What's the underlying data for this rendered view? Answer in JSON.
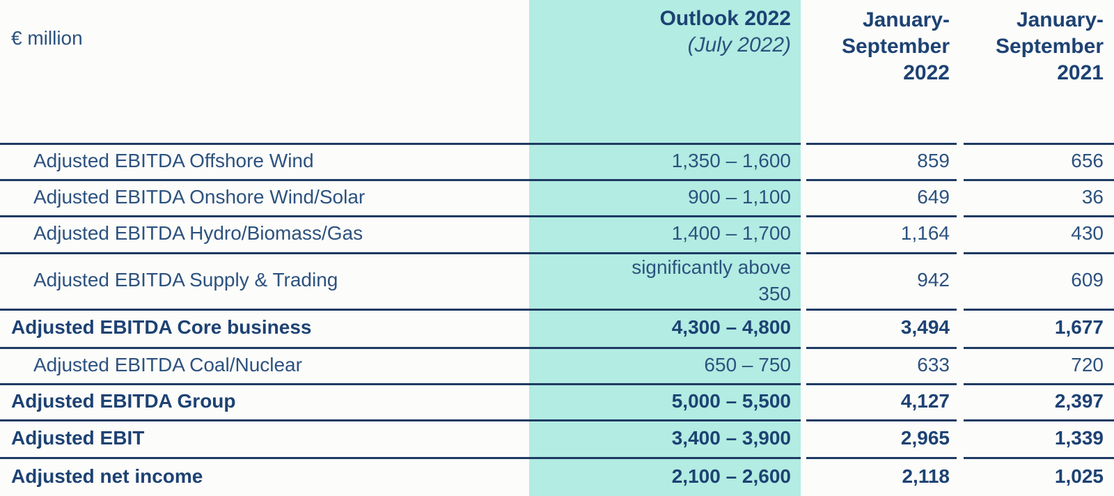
{
  "colors": {
    "accent_teal": "#b2ece2",
    "navy_text": "#2c527f",
    "navy_bold": "#1d4273",
    "rule": "#1e3a63",
    "background": "#fcfcfa"
  },
  "table": {
    "unit_label": "€ million",
    "header": {
      "outlook": {
        "title": "Outlook 2022",
        "subtitle": "(July 2022)"
      },
      "period_2022": {
        "lines": [
          "January-",
          "September",
          "2022"
        ]
      },
      "period_2021": {
        "lines": [
          "January-",
          "September",
          "2021"
        ]
      }
    },
    "rows": [
      {
        "label": "Adjusted EBITDA Offshore Wind",
        "outlook": "1,350 – 1,600",
        "jan_sep_2022": "859",
        "jan_sep_2021": "656",
        "emphasis": false
      },
      {
        "label": "Adjusted EBITDA Onshore Wind/Solar",
        "outlook": "900 – 1,100",
        "jan_sep_2022": "649",
        "jan_sep_2021": "36",
        "emphasis": false
      },
      {
        "label": "Adjusted EBITDA Hydro/Biomass/Gas",
        "outlook": "1,400 – 1,700",
        "jan_sep_2022": "1,164",
        "jan_sep_2021": "430",
        "emphasis": false
      },
      {
        "label": "Adjusted EBITDA Supply & Trading",
        "outlook": "significantly above 350",
        "jan_sep_2022": "942",
        "jan_sep_2021": "609",
        "emphasis": false
      },
      {
        "label": "Adjusted EBITDA Core business",
        "outlook": "4,300 – 4,800",
        "jan_sep_2022": "3,494",
        "jan_sep_2021": "1,677",
        "emphasis": true
      },
      {
        "label": "Adjusted EBITDA Coal/Nuclear",
        "outlook": "650 – 750",
        "jan_sep_2022": "633",
        "jan_sep_2021": "720",
        "emphasis": false
      },
      {
        "label": "Adjusted EBITDA Group",
        "outlook": "5,000 – 5,500",
        "jan_sep_2022": "4,127",
        "jan_sep_2021": "2,397",
        "emphasis": true
      },
      {
        "label": "Adjusted EBIT",
        "outlook": "3,400 – 3,900",
        "jan_sep_2022": "2,965",
        "jan_sep_2021": "1,339",
        "emphasis": true
      },
      {
        "label": "Adjusted net income",
        "outlook": "2,100 – 2,600",
        "jan_sep_2022": "2,118",
        "jan_sep_2021": "1,025",
        "emphasis": true
      }
    ]
  }
}
